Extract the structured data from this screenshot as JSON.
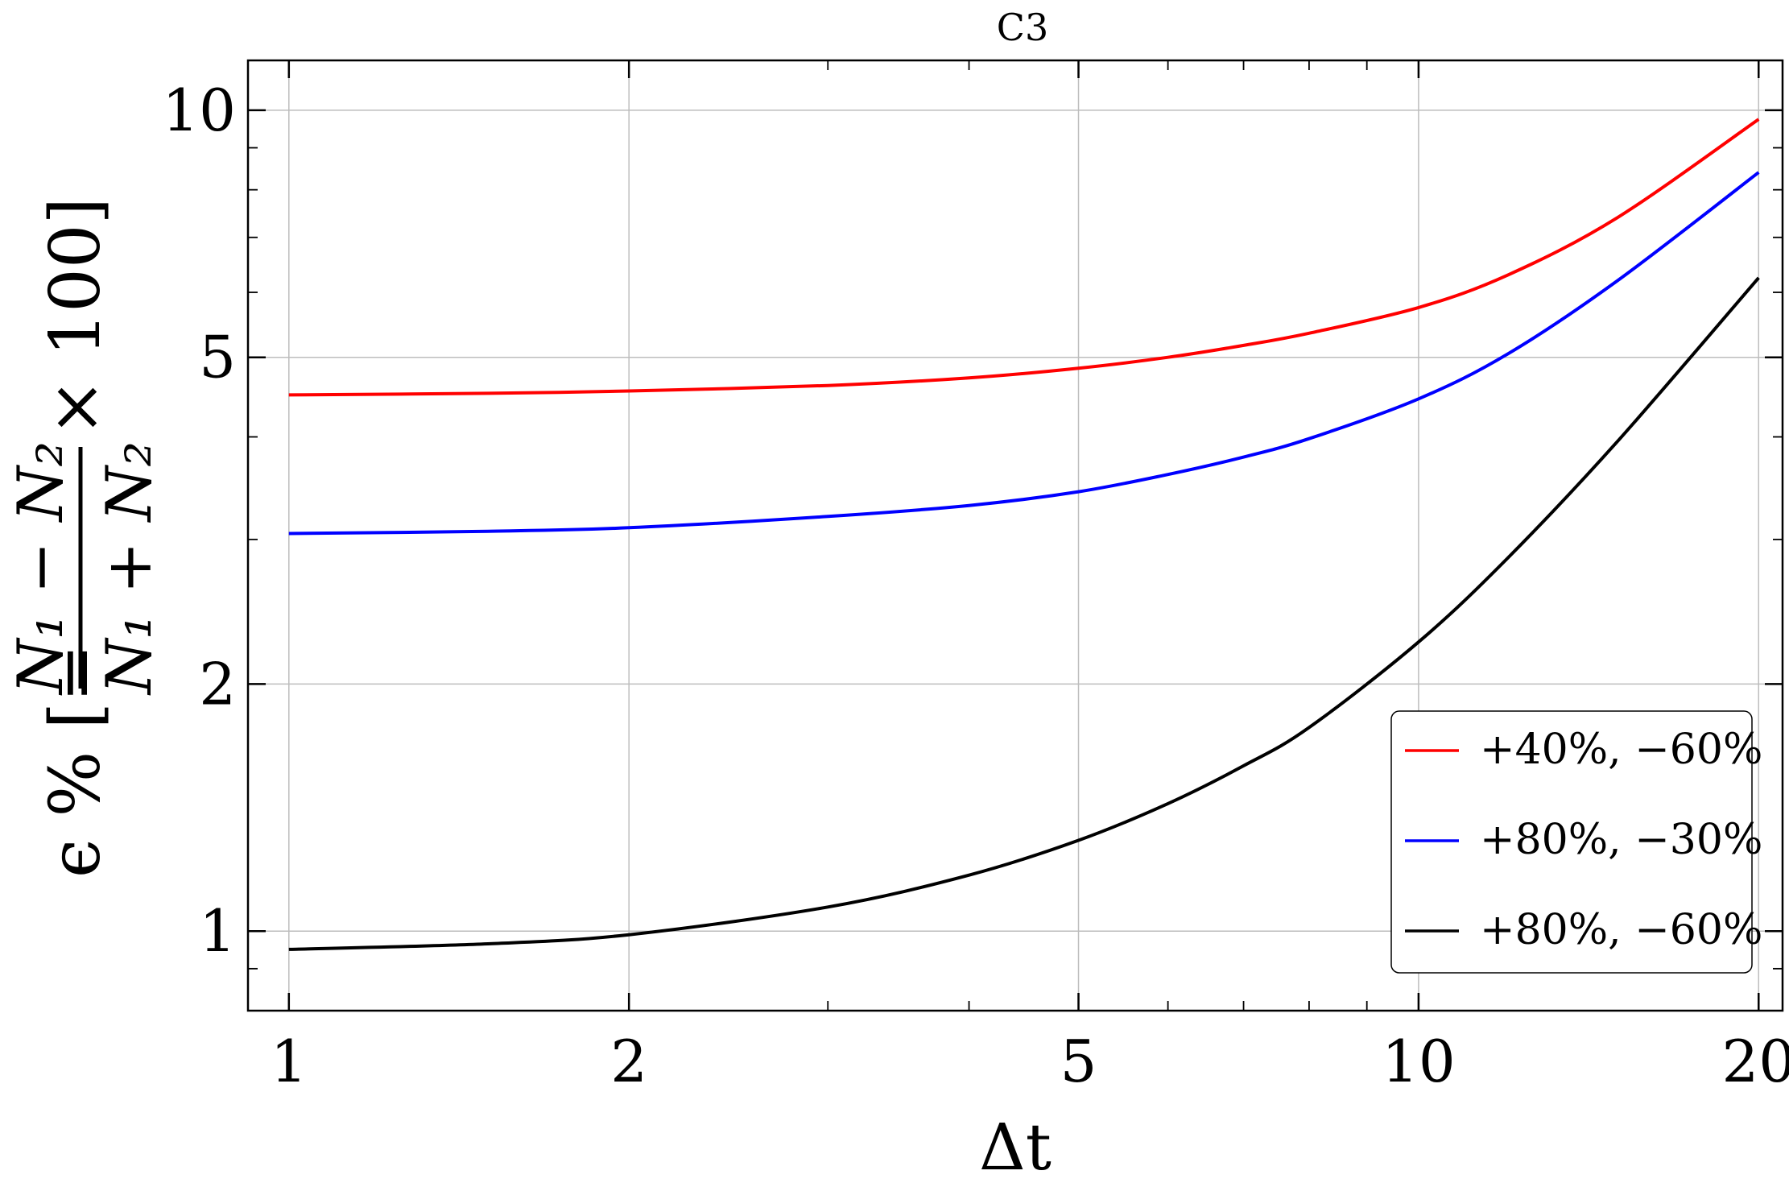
{
  "chart_data": {
    "type": "line",
    "title": "C3",
    "xlabel": "Δt",
    "ylabel": {
      "prefix": "ϵ % [=",
      "numerator": "N₁ − N₂",
      "denominator": "N₁ + N₂",
      "suffix": "× 100]"
    },
    "xscale": "log",
    "yscale": "log",
    "xlim": [
      0.92,
      21
    ],
    "ylim": [
      0.8,
      11.5
    ],
    "xticks": [
      1,
      2,
      5,
      10,
      20
    ],
    "xtick_labels": [
      "1",
      "2",
      "5",
      "10",
      "20"
    ],
    "yticks": [
      1,
      2,
      5,
      10
    ],
    "ytick_labels": [
      "1",
      "2",
      "5",
      "10"
    ],
    "grid": true,
    "legend_position": "bottom-right",
    "series": [
      {
        "name": "+40%, −60%",
        "color": "#ff0000",
        "x": [
          1,
          1.5,
          2,
          3,
          4,
          5,
          6,
          7,
          8,
          10,
          12,
          15,
          20
        ],
        "values": [
          4.5,
          4.52,
          4.55,
          4.62,
          4.72,
          4.85,
          5.0,
          5.17,
          5.35,
          5.75,
          6.3,
          7.4,
          9.75
        ]
      },
      {
        "name": "+80%, −30%",
        "color": "#0000ff",
        "x": [
          1,
          1.5,
          2,
          3,
          4,
          5,
          6,
          7,
          8,
          10,
          12,
          15,
          20
        ],
        "values": [
          3.05,
          3.07,
          3.1,
          3.2,
          3.3,
          3.43,
          3.6,
          3.78,
          3.98,
          4.45,
          5.05,
          6.2,
          8.4
        ]
      },
      {
        "name": "+80%, −60%",
        "color": "#000000",
        "x": [
          1,
          1.5,
          2,
          3,
          4,
          5,
          6,
          7,
          8,
          10,
          12,
          15,
          20
        ],
        "values": [
          0.95,
          0.965,
          0.99,
          1.07,
          1.17,
          1.29,
          1.43,
          1.59,
          1.77,
          2.25,
          2.85,
          3.95,
          6.25
        ]
      }
    ]
  }
}
